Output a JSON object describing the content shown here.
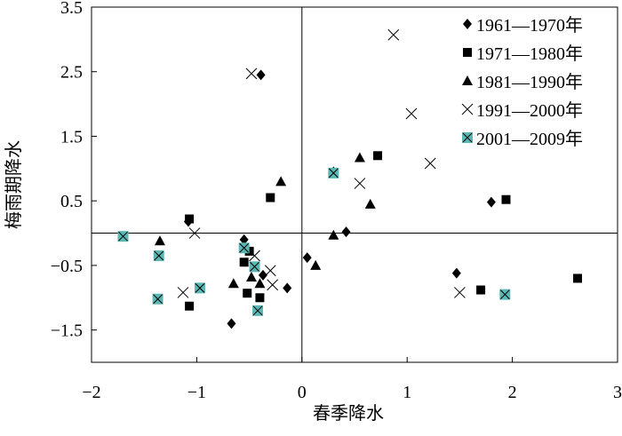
{
  "chart_data": {
    "type": "scatter",
    "xlabel": "春季降水",
    "ylabel": "梅雨期降水",
    "xlim": [
      -2,
      3
    ],
    "ylim": [
      -2,
      3.5
    ],
    "xticks": [
      -2,
      -1,
      0,
      1,
      2,
      3
    ],
    "yticks": [
      -1.5,
      -0.5,
      0.5,
      1.5,
      2.5,
      3.5
    ],
    "xtick_labels": [
      "−2",
      "−1",
      "0",
      "1",
      "2",
      "3"
    ],
    "ytick_labels": [
      "−1.5",
      "−0.5",
      "0.5",
      "1.5",
      "2.5",
      "3.5"
    ],
    "reference_lines": {
      "x": 0,
      "y": 0
    },
    "grid": false,
    "legend_position": "top-right",
    "series": [
      {
        "name": "1961—1970年",
        "marker": "diamond",
        "color": "#000000",
        "points": [
          [
            -0.39,
            2.45
          ],
          [
            1.8,
            0.48
          ],
          [
            0.42,
            0.02
          ],
          [
            0.3,
            0.95
          ],
          [
            -0.55,
            -0.1
          ],
          [
            0.05,
            -0.38
          ],
          [
            -0.14,
            -0.85
          ],
          [
            -0.37,
            -0.65
          ],
          [
            -0.67,
            -1.4
          ],
          [
            1.47,
            -0.62
          ],
          [
            -1.08,
            0.18
          ]
        ]
      },
      {
        "name": "1971—1980年",
        "marker": "square",
        "color": "#000000",
        "points": [
          [
            -1.07,
            0.22
          ],
          [
            -0.3,
            0.55
          ],
          [
            0.72,
            1.2
          ],
          [
            1.94,
            0.52
          ],
          [
            -0.5,
            -0.28
          ],
          [
            -0.55,
            -0.45
          ],
          [
            -0.52,
            -0.93
          ],
          [
            -0.4,
            -1.0
          ],
          [
            -1.07,
            -1.13
          ],
          [
            1.7,
            -0.88
          ],
          [
            2.62,
            -0.7
          ]
        ]
      },
      {
        "name": "1981—1990年",
        "marker": "triangle",
        "color": "#000000",
        "points": [
          [
            -0.2,
            0.8
          ],
          [
            0.55,
            1.17
          ],
          [
            0.65,
            0.45
          ],
          [
            0.3,
            -0.03
          ],
          [
            0.13,
            -0.5
          ],
          [
            -1.35,
            -0.12
          ],
          [
            -0.65,
            -0.78
          ],
          [
            -0.48,
            -0.68
          ],
          [
            -0.4,
            -0.78
          ]
        ]
      },
      {
        "name": "1991—2000年",
        "marker": "cross",
        "color": "#000000",
        "points": [
          [
            0.87,
            3.07
          ],
          [
            -0.48,
            2.47
          ],
          [
            1.04,
            1.85
          ],
          [
            1.22,
            1.08
          ],
          [
            0.55,
            0.77
          ],
          [
            -1.02,
            0.0
          ],
          [
            -0.3,
            -0.58
          ],
          [
            -1.13,
            -0.92
          ],
          [
            -0.28,
            -0.8
          ],
          [
            1.5,
            -0.92
          ],
          [
            -0.45,
            -0.35
          ]
        ]
      },
      {
        "name": "2001—2009年",
        "marker": "teal-square-x",
        "color": "#5bb7b4",
        "points": [
          [
            0.3,
            0.93
          ],
          [
            -1.7,
            -0.05
          ],
          [
            -1.36,
            -0.35
          ],
          [
            -0.55,
            -0.23
          ],
          [
            -0.45,
            -0.52
          ],
          [
            -0.97,
            -0.85
          ],
          [
            -1.37,
            -1.02
          ],
          [
            -0.42,
            -1.2
          ],
          [
            1.93,
            -0.95
          ]
        ]
      }
    ]
  }
}
